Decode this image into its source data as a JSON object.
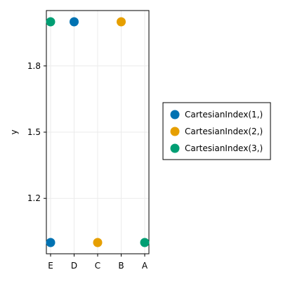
{
  "chart_data": {
    "type": "scatter",
    "title": "",
    "xlabel": "",
    "ylabel": "y",
    "categories": [
      "E",
      "D",
      "C",
      "B",
      "A"
    ],
    "yticks": [
      1.2,
      1.5,
      1.8
    ],
    "ylim": [
      1.0,
      2.0
    ],
    "grid": true,
    "legend_position": "right",
    "series": [
      {
        "name": "CartesianIndex(1,)",
        "color": "#0072b2",
        "points": [
          {
            "x": "E",
            "y": 1.0
          },
          {
            "x": "D",
            "y": 2.0
          }
        ]
      },
      {
        "name": "CartesianIndex(2,)",
        "color": "#e69f00",
        "points": [
          {
            "x": "C",
            "y": 1.0
          },
          {
            "x": "B",
            "y": 2.0
          }
        ]
      },
      {
        "name": "CartesianIndex(3,)",
        "color": "#009e73",
        "points": [
          {
            "x": "A",
            "y": 1.0
          },
          {
            "x": "E",
            "y": 2.0
          }
        ]
      }
    ]
  }
}
